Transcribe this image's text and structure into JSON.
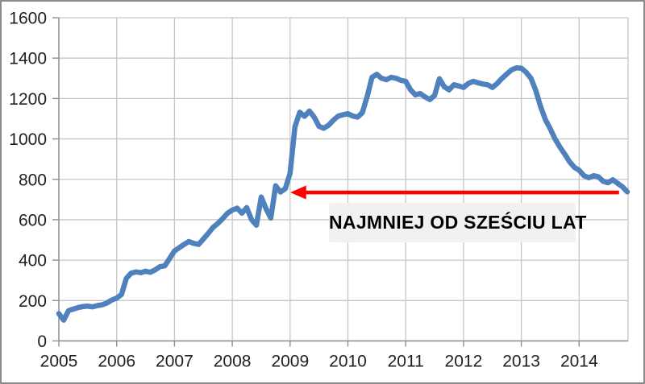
{
  "chart_data": {
    "type": "line",
    "title": "",
    "x_start_year": 2005,
    "points_per_year": 12,
    "x_tick_labels": [
      "2005",
      "2006",
      "2007",
      "2008",
      "2009",
      "2010",
      "2011",
      "2012",
      "2013",
      "2014"
    ],
    "y_ticks": [
      0,
      200,
      400,
      600,
      800,
      1000,
      1200,
      1400,
      1600
    ],
    "ylim": [
      0,
      1600
    ],
    "xlim": [
      2005,
      2014.85
    ],
    "grid": true,
    "legend_position": "none",
    "line_color": "#4f81bd",
    "gridline_color": "#c6c6c6",
    "axis_color": "#8e8e8e",
    "tick_label_color": "#1f1f1f",
    "values": [
      135,
      103,
      150,
      158,
      165,
      170,
      172,
      169,
      175,
      179,
      188,
      203,
      212,
      230,
      310,
      335,
      342,
      338,
      345,
      340,
      352,
      368,
      372,
      408,
      445,
      462,
      478,
      492,
      483,
      478,
      505,
      532,
      562,
      582,
      605,
      632,
      648,
      657,
      633,
      660,
      600,
      573,
      712,
      655,
      608,
      768,
      737,
      753,
      830,
      1060,
      1132,
      1112,
      1138,
      1108,
      1062,
      1053,
      1068,
      1093,
      1113,
      1120,
      1125,
      1113,
      1108,
      1130,
      1210,
      1305,
      1320,
      1300,
      1293,
      1305,
      1300,
      1290,
      1285,
      1243,
      1218,
      1225,
      1208,
      1195,
      1215,
      1298,
      1258,
      1243,
      1268,
      1262,
      1255,
      1275,
      1285,
      1278,
      1272,
      1268,
      1255,
      1275,
      1300,
      1322,
      1342,
      1352,
      1350,
      1330,
      1300,
      1240,
      1160,
      1095,
      1050,
      1000,
      960,
      925,
      888,
      860,
      845,
      818,
      808,
      818,
      812,
      790,
      783,
      798,
      780,
      763,
      738
    ]
  },
  "annotation": {
    "label": "NAJMNIEJ OD SZEŚCIU LAT",
    "box_bg": "#f1f1f1",
    "text_color": "#000000",
    "arrow_color": "#fe0000",
    "arrow_value": 735,
    "arrow_from_year": 2014.69,
    "arrow_to_year": 2009.02
  }
}
